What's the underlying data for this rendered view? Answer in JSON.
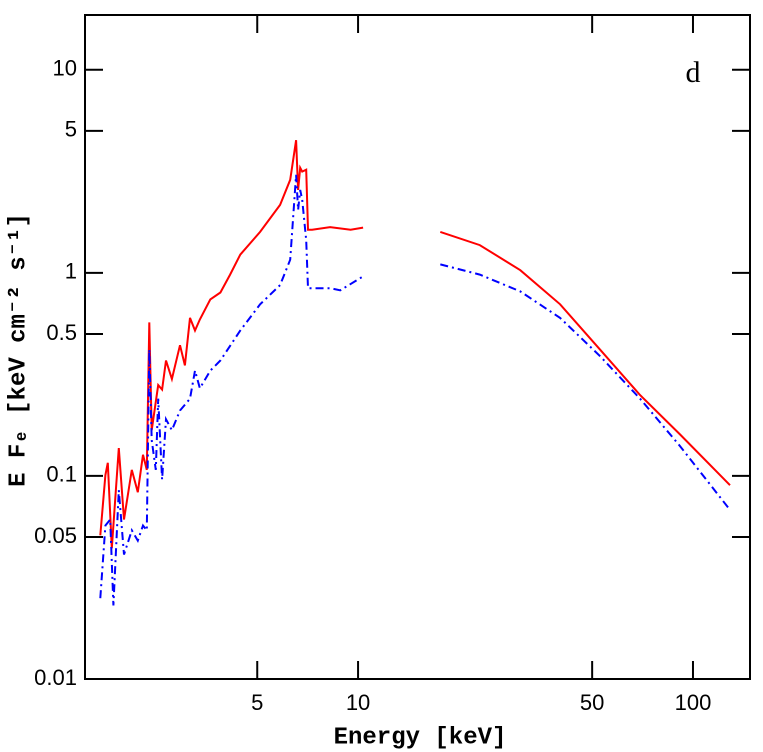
{
  "chart_data": {
    "type": "line",
    "panel_label": "d",
    "x_label": "Energy  [keV]",
    "y_label": "E Fₑ  [keV cm⁻² s⁻¹]",
    "xscale": "log",
    "yscale": "log",
    "xlim": [
      1.53,
      148
    ],
    "ylim": [
      0.01,
      18.6
    ],
    "xticks": [
      5,
      10,
      50,
      100
    ],
    "yticks": [
      0.01,
      0.05,
      0.1,
      0.5,
      1,
      5,
      10
    ],
    "series": [
      {
        "color": "#ff0000",
        "dash": "solid",
        "x": [
          1.7,
          1.76,
          1.79,
          1.84,
          1.93,
          2.0,
          2.11,
          2.2,
          2.28,
          2.34,
          2.38,
          2.42,
          2.53,
          2.6,
          2.67,
          2.78,
          2.94,
          3.04,
          3.15,
          3.26,
          3.37,
          3.62,
          3.88,
          4.15,
          4.45,
          5.1,
          5.85,
          6.27,
          6.53,
          6.62,
          6.72,
          6.81,
          7.0,
          7.09,
          7.29,
          8.25,
          9.5,
          10.35,
          null,
          17.6,
          23.1,
          30.5,
          40.1,
          52.7,
          69.5,
          91.5,
          129
        ],
        "values": [
          0.051,
          0.101,
          0.116,
          0.044,
          0.137,
          0.061,
          0.107,
          0.083,
          0.127,
          0.107,
          0.57,
          0.168,
          0.28,
          0.266,
          0.37,
          0.3,
          0.44,
          0.35,
          0.6,
          0.52,
          0.59,
          0.74,
          0.8,
          0.98,
          1.23,
          1.59,
          2.16,
          2.87,
          4.5,
          2.56,
          3.29,
          3.15,
          3.22,
          1.63,
          1.63,
          1.68,
          1.63,
          1.67,
          null,
          1.59,
          1.37,
          1.03,
          0.7,
          0.42,
          0.25,
          0.16,
          0.09
        ]
      },
      {
        "color": "#0000ff",
        "dash": "dashdot",
        "x": [
          1.7,
          1.76,
          1.82,
          1.86,
          1.93,
          2.0,
          2.11,
          2.2,
          2.28,
          2.34,
          2.38,
          2.42,
          2.49,
          2.53,
          2.6,
          2.67,
          2.78,
          2.94,
          3.15,
          3.26,
          3.37,
          3.62,
          3.88,
          4.45,
          5.1,
          5.85,
          6.27,
          6.53,
          6.62,
          6.72,
          6.81,
          7.0,
          7.09,
          8.25,
          8.85,
          10.35,
          null,
          17.6,
          23.1,
          30.5,
          40.1,
          52.7,
          69.5,
          91.5,
          129
        ],
        "values": [
          0.025,
          0.057,
          0.061,
          0.023,
          0.085,
          0.041,
          0.054,
          0.048,
          0.057,
          0.054,
          0.42,
          0.15,
          0.107,
          0.24,
          0.096,
          0.19,
          0.168,
          0.21,
          0.24,
          0.33,
          0.27,
          0.33,
          0.37,
          0.52,
          0.7,
          0.87,
          1.16,
          3.04,
          2.04,
          2.56,
          2.29,
          1.45,
          0.84,
          0.84,
          0.82,
          0.96,
          null,
          1.1,
          0.98,
          0.81,
          0.6,
          0.39,
          0.24,
          0.14,
          0.068
        ]
      }
    ]
  }
}
